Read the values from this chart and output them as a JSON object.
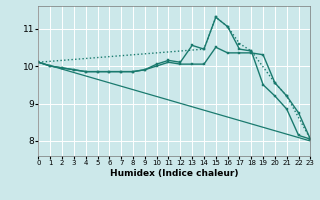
{
  "xlabel": "Humidex (Indice chaleur)",
  "bg_color": "#cce8ea",
  "grid_color": "#ffffff",
  "line_color": "#1a7a6e",
  "xlim": [
    0,
    23
  ],
  "ylim": [
    7.6,
    11.6
  ],
  "yticks": [
    8,
    9,
    10,
    11
  ],
  "xticks": [
    0,
    1,
    2,
    3,
    4,
    5,
    6,
    7,
    8,
    9,
    10,
    11,
    12,
    13,
    14,
    15,
    16,
    17,
    18,
    19,
    20,
    21,
    22,
    23
  ],
  "lines": [
    {
      "x": [
        0,
        23
      ],
      "y": [
        10.1,
        8.0
      ],
      "marker": null,
      "markersize": 0,
      "linewidth": 0.9,
      "linestyle": "-"
    },
    {
      "x": [
        0,
        1,
        2,
        3,
        4,
        5,
        6,
        7,
        8,
        9,
        10,
        11,
        12,
        13,
        14,
        15,
        16,
        17,
        18,
        19,
        20,
        21,
        22,
        23
      ],
      "y": [
        10.1,
        10.0,
        9.95,
        9.9,
        9.85,
        9.85,
        9.85,
        9.85,
        9.85,
        9.9,
        10.05,
        10.15,
        10.1,
        10.55,
        10.45,
        11.3,
        11.05,
        10.45,
        10.4,
        9.5,
        9.2,
        8.85,
        8.15,
        8.05
      ],
      "marker": "s",
      "markersize": 2,
      "linewidth": 1.0,
      "linestyle": "-"
    },
    {
      "x": [
        0,
        1,
        2,
        3,
        4,
        5,
        6,
        7,
        8,
        9,
        10,
        11,
        12,
        13,
        14,
        15,
        16,
        17,
        18,
        19,
        20,
        21,
        22,
        23
      ],
      "y": [
        10.1,
        10.0,
        9.95,
        9.9,
        9.85,
        9.85,
        9.85,
        9.85,
        9.85,
        9.9,
        10.0,
        10.1,
        10.05,
        10.05,
        10.05,
        10.5,
        10.35,
        10.35,
        10.35,
        10.3,
        9.55,
        9.2,
        8.75,
        8.05
      ],
      "marker": "s",
      "markersize": 2,
      "linewidth": 1.0,
      "linestyle": "-"
    },
    {
      "x": [
        0,
        14,
        15,
        16,
        17,
        18,
        20,
        21,
        23
      ],
      "y": [
        10.1,
        10.45,
        11.3,
        11.05,
        10.6,
        10.4,
        9.55,
        9.2,
        8.05
      ],
      "marker": "s",
      "markersize": 2,
      "linewidth": 1.0,
      "linestyle": ":"
    }
  ]
}
